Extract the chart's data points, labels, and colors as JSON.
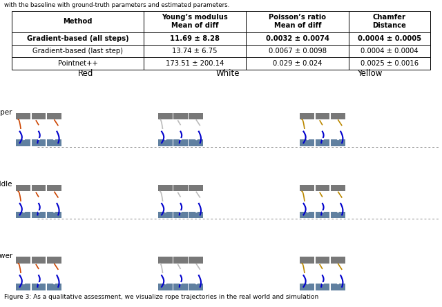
{
  "title_text": "with the baseline with ground-truth parameters and estimated parameters.",
  "table_headers": [
    "Method",
    "Young’s modulus\nMean of diff",
    "Poisson’s ratio\nMean of diff",
    "Chamfer\nDistance"
  ],
  "table_rows": [
    [
      "Gradient-based (all steps)",
      "11.69 ± 8.28",
      "0.0032 ± 0.0074",
      "0.0004 ± 0.0005"
    ],
    [
      "Gradient-based (last step)",
      "13.74 ± 6.75",
      "0.0067 ± 0.0098",
      "0.0004 ± 0.0004"
    ],
    [
      "Pointnet++",
      "173.51 ± 200.14",
      "0.029 ± 0.024",
      "0.0025 ± 0.0016"
    ]
  ],
  "bold_row": 0,
  "col_labels": [
    "Red",
    "White",
    "Yellow"
  ],
  "row_labels": [
    "Upper",
    "Middle",
    "Lower"
  ],
  "caption": "Figure 3: As a qualitative assessment, we visualize rope trajectories in the real world and simulation",
  "bg_color": "#ffffff",
  "real_bg": "#b0b0b0",
  "sim_bg_top": "#8899aa",
  "sim_bg_bot": "#6688aa",
  "rope_color": "#1010dd",
  "rope_color_red": "#cc3300",
  "rope_color_white": "#dddddd",
  "rope_color_yellow": "#cc9900"
}
